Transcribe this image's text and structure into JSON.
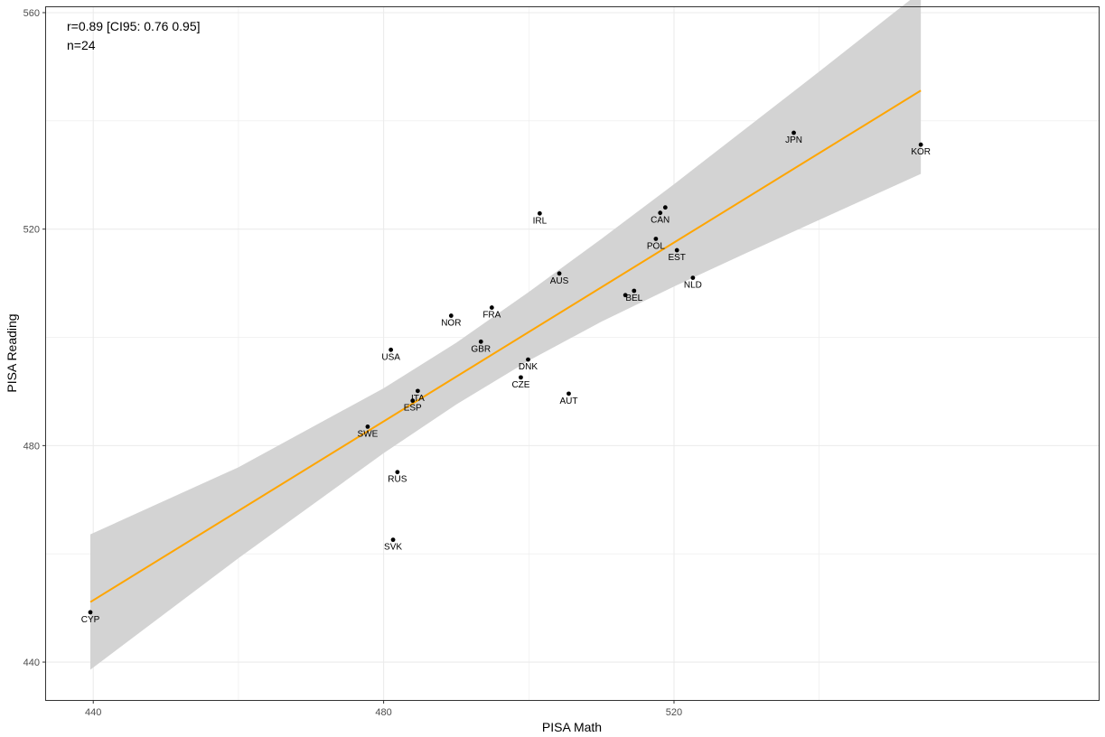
{
  "chart_data": {
    "type": "scatter",
    "xlabel": "PISA Math",
    "ylabel": "PISA Reading",
    "xlim": [
      433.5,
      578.5
    ],
    "ylim": [
      433,
      561
    ],
    "x_ticks": [
      440,
      480,
      520
    ],
    "x_tick_labels": [
      "440",
      "480",
      "520"
    ],
    "x_minor": [
      460,
      500,
      540
    ],
    "y_ticks": [
      440,
      480,
      520,
      560
    ],
    "y_tick_labels": [
      "440",
      "480",
      "520",
      "560"
    ],
    "y_minor": [
      460,
      500,
      540
    ],
    "grid": true,
    "annotations": [
      "r=0.89 [CI95: 0.76 0.95]",
      "n=24"
    ],
    "points": [
      {
        "label": "CYP",
        "x": 439.6,
        "y": 449.2
      },
      {
        "label": "SVK",
        "x": 481.3,
        "y": 462.6
      },
      {
        "label": "RUS",
        "x": 481.9,
        "y": 475.1
      },
      {
        "label": "SWE",
        "x": 477.8,
        "y": 483.5
      },
      {
        "label": "ESP",
        "x": 484.0,
        "y": 488.3
      },
      {
        "label": "ITA",
        "x": 484.7,
        "y": 490.1
      },
      {
        "label": "USA",
        "x": 481.0,
        "y": 497.7
      },
      {
        "label": "GBR",
        "x": 493.4,
        "y": 499.2
      },
      {
        "label": "NOR",
        "x": 489.3,
        "y": 504.0
      },
      {
        "label": "FRA",
        "x": 494.9,
        "y": 505.5
      },
      {
        "label": "CZE",
        "x": 498.9,
        "y": 492.6
      },
      {
        "label": "DNK",
        "x": 499.9,
        "y": 495.9
      },
      {
        "label": "AUT",
        "x": 505.5,
        "y": 489.6
      },
      {
        "label": "IRL",
        "x": 501.5,
        "y": 522.9
      },
      {
        "label": "AUS",
        "x": 504.2,
        "y": 511.8
      },
      {
        "label": "BEL",
        "x": 514.5,
        "y": 508.6
      },
      {
        "label": "BEL2",
        "x": 513.3,
        "y": 507.8
      },
      {
        "label": "POL",
        "x": 517.5,
        "y": 518.2
      },
      {
        "label": "CAN",
        "x": 518.1,
        "y": 523.0
      },
      {
        "label": "CAN2",
        "x": 518.8,
        "y": 524.0
      },
      {
        "label": "EST",
        "x": 520.4,
        "y": 516.1
      },
      {
        "label": "NLD",
        "x": 522.6,
        "y": 511.0
      },
      {
        "label": "JPN",
        "x": 536.5,
        "y": 537.8
      },
      {
        "label": "KOR",
        "x": 554.0,
        "y": 535.6
      }
    ],
    "fit_line": {
      "x": [
        439.6,
        554.0
      ],
      "y": [
        451.1,
        545.6
      ]
    },
    "ci_band": {
      "x": [
        439.6,
        460.0,
        480.0,
        490.0,
        500.0,
        510.0,
        520.0,
        530.0,
        540.0,
        554.0
      ],
      "lower": [
        438.6,
        459.2,
        478.6,
        487.6,
        495.7,
        502.9,
        509.4,
        515.6,
        521.7,
        530.2
      ],
      "upper": [
        463.6,
        476.0,
        490.6,
        499.0,
        508.4,
        518.2,
        528.3,
        538.7,
        549.1,
        563.9
      ]
    },
    "colors": {
      "fit": "#FFA500",
      "band": "#d3d3d3",
      "point": "#000000",
      "grid": "#ebebeb",
      "border": "#333333"
    }
  }
}
